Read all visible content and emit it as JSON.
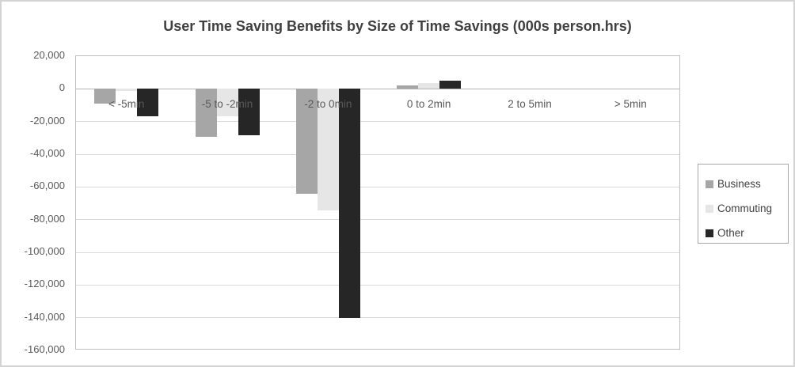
{
  "chart_data": {
    "type": "bar",
    "title": "User Time Saving Benefits by Size of Time Savings (000s person.hrs)",
    "categories": [
      "< -5min",
      "-5 to -2min",
      "-2 to 0min",
      "0 to 2min",
      "2 to 5min",
      "> 5min"
    ],
    "series": [
      {
        "name": "Business",
        "color": "#a6a6a6",
        "values": [
          -9000,
          -29500,
          -64000,
          2000,
          0,
          0
        ]
      },
      {
        "name": "Commuting",
        "color": "#e7e6e6",
        "values": [
          -1500,
          -17000,
          -74500,
          3500,
          0,
          0
        ]
      },
      {
        "name": "Other",
        "color": "#262626",
        "values": [
          -17000,
          -28500,
          -140000,
          5000,
          0,
          0
        ]
      }
    ],
    "ylim": [
      -160000,
      20000
    ],
    "ytick_step": 20000,
    "ytick_labels": [
      "20,000",
      "0",
      "-20,000",
      "-40,000",
      "-60,000",
      "-80,000",
      "-100,000",
      "-120,000",
      "-140,000",
      "-160,000"
    ],
    "grid": true,
    "legend_position": "right",
    "bar_overlap": 0
  },
  "colors": {
    "background": "#ffffff",
    "outer_border": "#d4d4d4",
    "title_text": "#404040",
    "axis_text": "#595959",
    "gridline": "#d9d9d9",
    "zero_line": "#b4b4b4",
    "plot_border": "#bfbfbf",
    "legend_border": "#a6a6a6",
    "legend_text": "#404040"
  }
}
